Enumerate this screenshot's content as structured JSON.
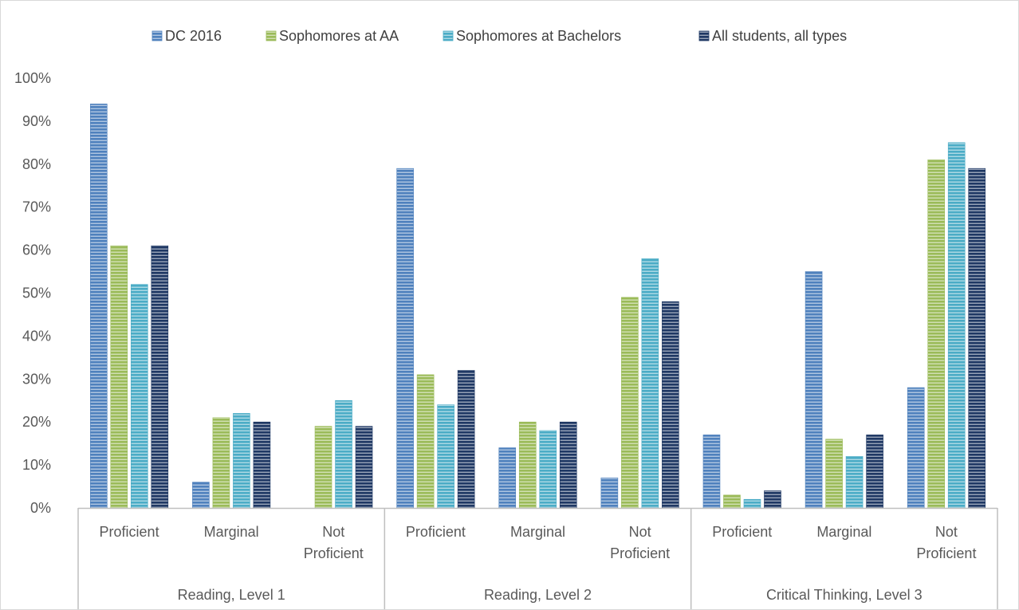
{
  "chart_data": {
    "type": "bar",
    "title": "",
    "xlabel": "",
    "ylabel": "",
    "ylim": [
      0,
      100
    ],
    "y_tick_step": 10,
    "y_tick_labels": [
      "0%",
      "10%",
      "20%",
      "30%",
      "40%",
      "50%",
      "60%",
      "70%",
      "80%",
      "90%",
      "100%"
    ],
    "grid": false,
    "legend_position": "top",
    "groups": [
      {
        "label": "Reading, Level 1",
        "categories": [
          [
            "Proficient"
          ],
          [
            "Marginal"
          ],
          [
            "Not",
            "Proficient"
          ]
        ]
      },
      {
        "label": "Reading, Level 2",
        "categories": [
          [
            "Proficient"
          ],
          [
            "Marginal"
          ],
          [
            "Not",
            "Proficient"
          ]
        ]
      },
      {
        "label": "Critical Thinking, Level 3",
        "categories": [
          [
            "Proficient"
          ],
          [
            "Marginal"
          ],
          [
            "Not",
            "Proficient"
          ]
        ]
      }
    ],
    "series": [
      {
        "name": "DC 2016",
        "color": "#4f81bd",
        "values": [
          94,
          6,
          0,
          79,
          14,
          7,
          17,
          55,
          28
        ]
      },
      {
        "name": "Sophomores at AA",
        "color": "#9bbb59",
        "values": [
          61,
          21,
          19,
          31,
          20,
          49,
          3,
          16,
          81
        ]
      },
      {
        "name": "Sophomores at Bachelors",
        "color": "#4bacc6",
        "values": [
          52,
          22,
          25,
          24,
          18,
          58,
          2,
          12,
          85
        ]
      },
      {
        "name": "All students, all types",
        "color": "#1f3864",
        "values": [
          61,
          20,
          19,
          32,
          20,
          48,
          4,
          17,
          79
        ]
      }
    ]
  }
}
